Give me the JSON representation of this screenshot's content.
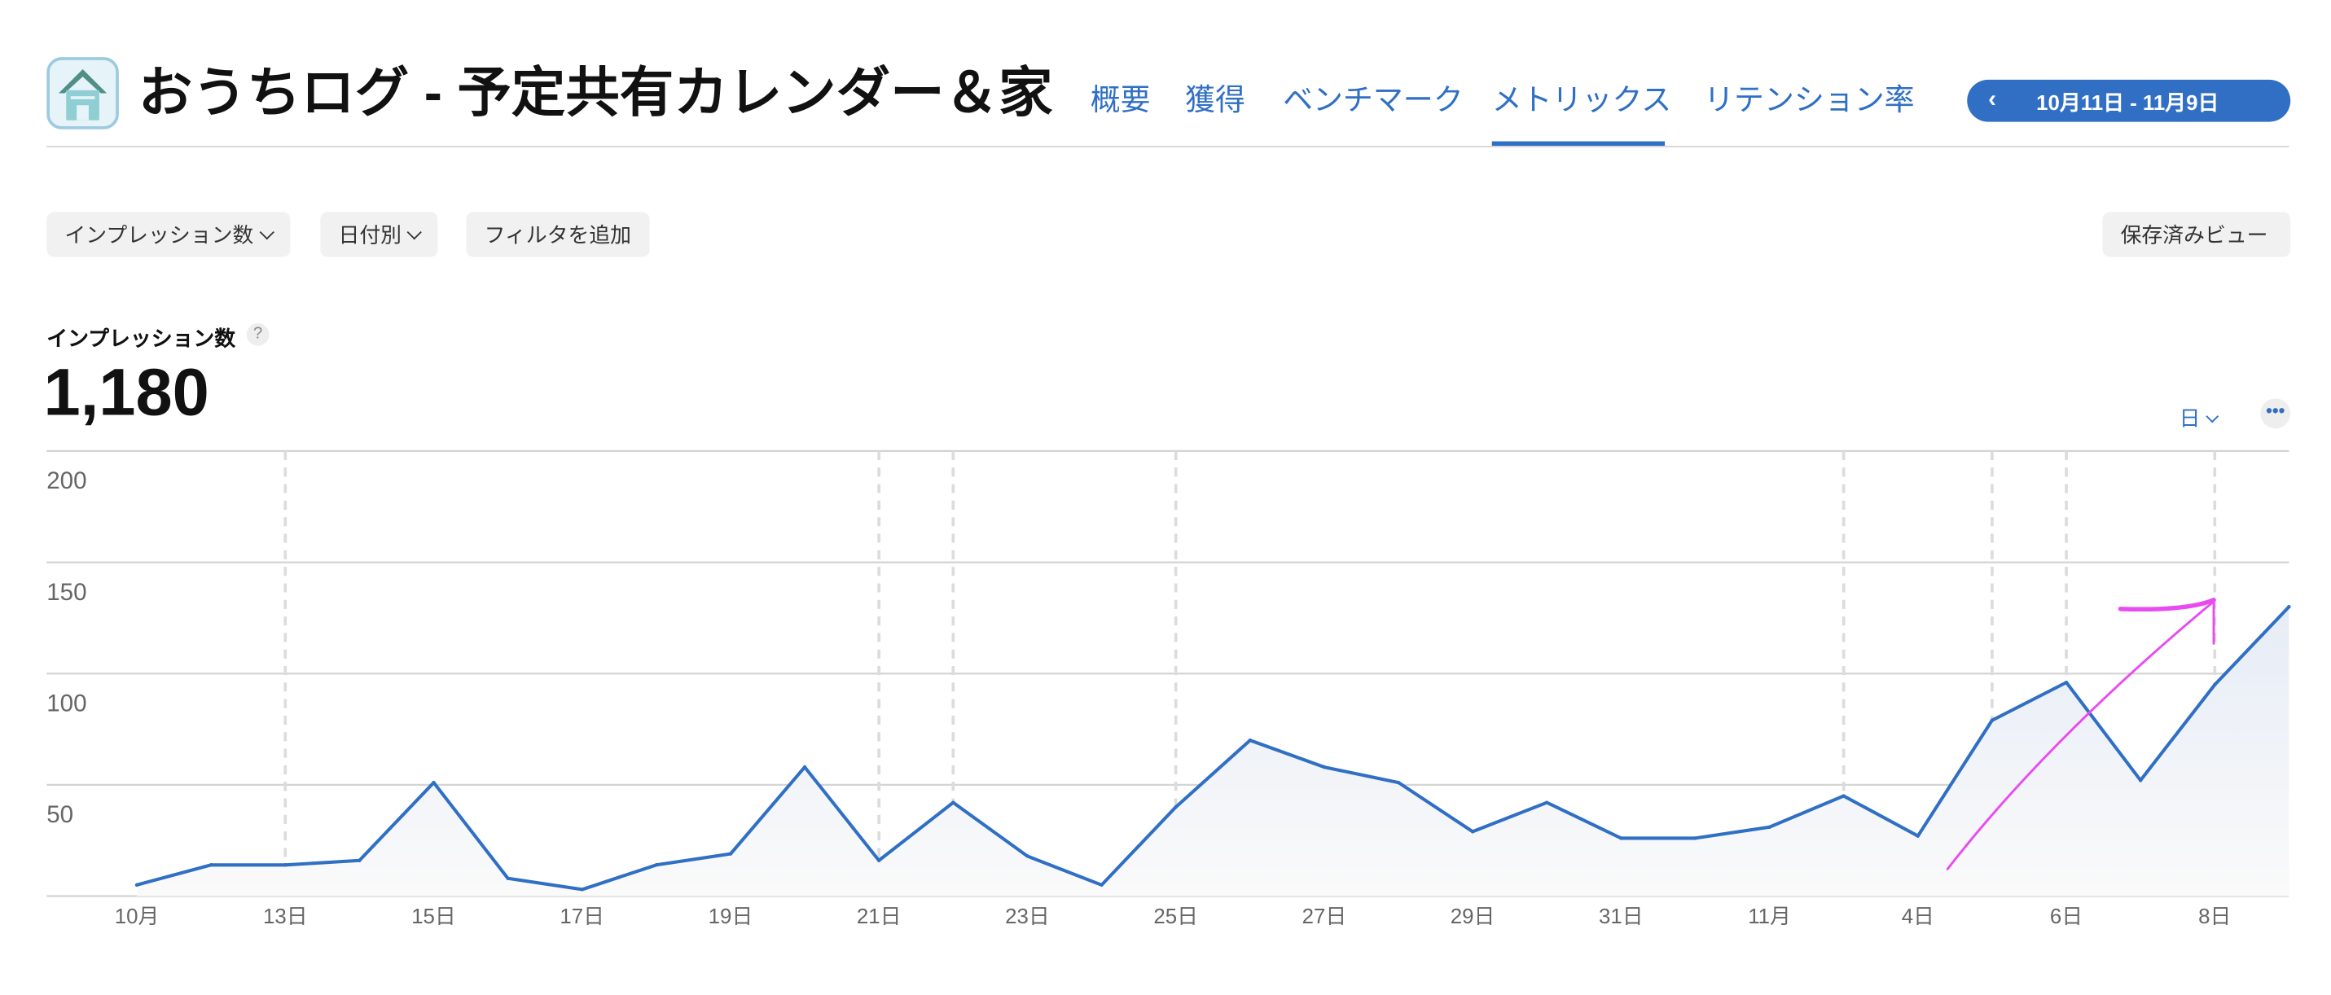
{
  "app": {
    "title": "おうちログ - 予定共有カレンダー＆家",
    "icon": "house-app-icon"
  },
  "tabs": [
    {
      "label": "概要",
      "active": false
    },
    {
      "label": "獲得",
      "active": false
    },
    {
      "label": "ベンチマーク",
      "active": false
    },
    {
      "label": "メトリックス",
      "active": true
    },
    {
      "label": "リテンション率",
      "active": false
    }
  ],
  "date_range": {
    "label": "10月11日 - 11月9日",
    "icon": "chevron-left-icon"
  },
  "toolbar": {
    "metric_select": "インプレッション数",
    "group_select": "日付別",
    "add_filter": "フィルタを追加",
    "saved_views": "保存済みビュー"
  },
  "metric": {
    "label": "インプレッション数",
    "help": "?",
    "value": "1,180"
  },
  "chart_controls": {
    "granularity": "日",
    "more": "•••"
  },
  "colors": {
    "accent": "#2f6fc4",
    "line": "#2f6fc4",
    "annotation": "#e84cf0"
  },
  "chart_data": {
    "type": "area",
    "x": [
      "10/11",
      "10/12",
      "10/13",
      "10/14",
      "10/15",
      "10/16",
      "10/17",
      "10/18",
      "10/19",
      "10/20",
      "10/21",
      "10/22",
      "10/23",
      "10/24",
      "10/25",
      "10/26",
      "10/27",
      "10/28",
      "10/29",
      "10/30",
      "10/31",
      "11/1",
      "11/2",
      "11/3",
      "11/4",
      "11/5",
      "11/6",
      "11/7",
      "11/8",
      "11/9"
    ],
    "values": [
      5,
      14,
      14,
      16,
      51,
      8,
      3,
      14,
      19,
      58,
      16,
      42,
      18,
      5,
      40,
      70,
      58,
      51,
      29,
      42,
      26,
      26,
      31,
      45,
      27,
      79,
      96,
      52,
      95,
      130
    ],
    "ylim": [
      0,
      200
    ],
    "yticks": [
      "200",
      "150",
      "100",
      "50"
    ],
    "yticks_values": [
      200,
      150,
      100,
      50
    ],
    "xtick_labels": [
      "10月",
      "13日",
      "15日",
      "17日",
      "19日",
      "21日",
      "23日",
      "25日",
      "27日",
      "29日",
      "31日",
      "11月",
      "4日",
      "6日",
      "8日"
    ],
    "xtick_index": [
      0,
      2,
      4,
      6,
      8,
      10,
      12,
      14,
      16,
      18,
      20,
      22,
      24,
      26,
      28
    ],
    "event_markers": [
      "10/13",
      "10/21",
      "10/22",
      "10/25",
      "11/3",
      "11/5",
      "11/6",
      "11/8"
    ],
    "grid": true,
    "annotation": "hand-drawn upward arrow"
  }
}
